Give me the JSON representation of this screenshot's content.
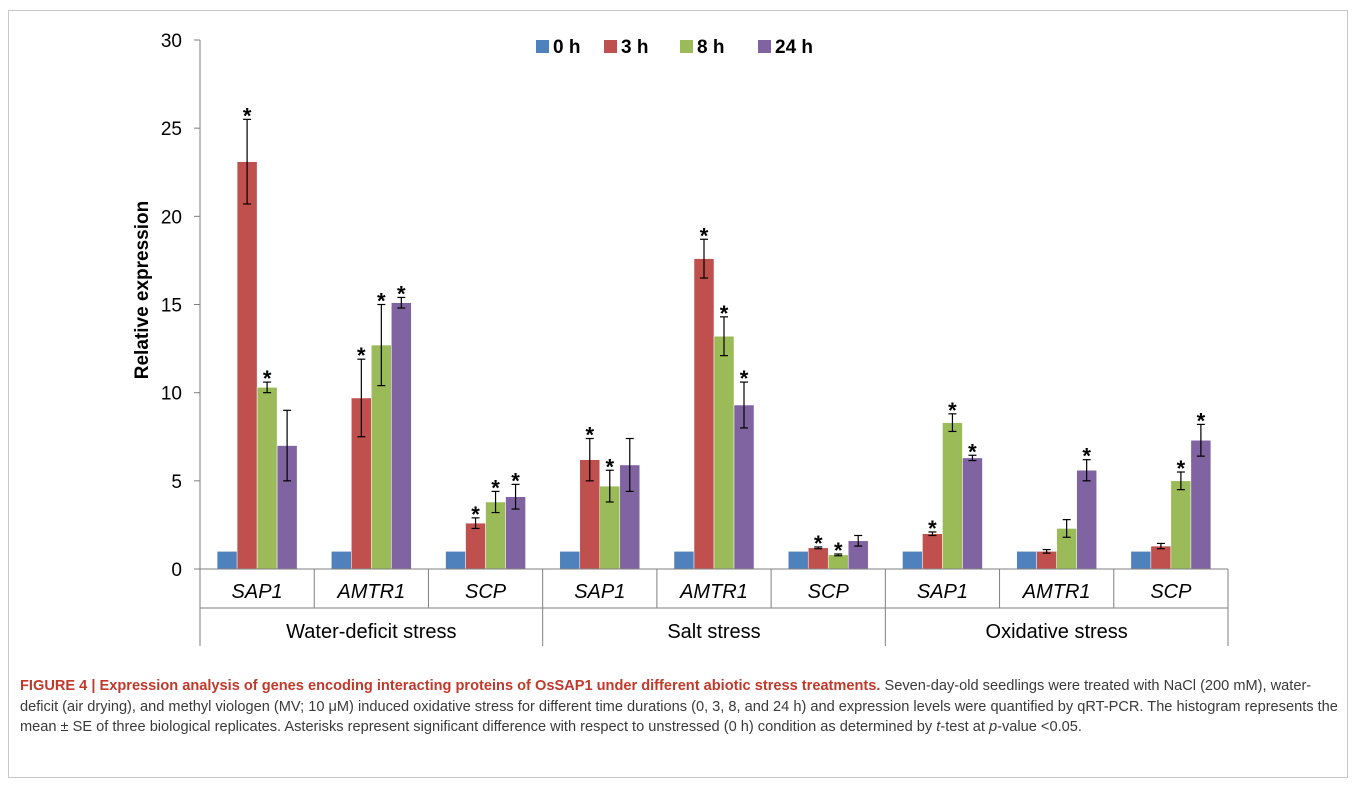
{
  "chart_data": {
    "type": "bar",
    "ylabel": "Relative expression",
    "ylim": [
      0,
      30
    ],
    "yticks": [
      0,
      5,
      10,
      15,
      20,
      25,
      30
    ],
    "grid": false,
    "legend_position": "top-center",
    "groups": [
      {
        "name": "Water-deficit stress",
        "categories": [
          "SAP1",
          "AMTR1",
          "SCP"
        ]
      },
      {
        "name": "Salt stress",
        "categories": [
          "SAP1",
          "AMTR1",
          "SCP"
        ]
      },
      {
        "name": "Oxidative stress",
        "categories": [
          "SAP1",
          "AMTR1",
          "SCP"
        ]
      }
    ],
    "series": [
      {
        "name": "0 h",
        "color": "#4F81BD",
        "values": [
          1,
          1,
          1,
          1,
          1,
          1,
          1,
          1,
          1
        ],
        "errors": [
          0,
          0,
          0,
          0,
          0,
          0,
          0,
          0,
          0
        ],
        "significant": [
          false,
          false,
          false,
          false,
          false,
          false,
          false,
          false,
          false
        ]
      },
      {
        "name": "3 h",
        "color": "#C0504D",
        "values": [
          23.1,
          9.7,
          2.6,
          6.2,
          17.6,
          1.2,
          2.0,
          1.0,
          1.3
        ],
        "errors": [
          2.4,
          2.2,
          0.3,
          1.2,
          1.1,
          0.05,
          0.1,
          0.1,
          0.15
        ],
        "significant": [
          true,
          true,
          true,
          true,
          true,
          true,
          true,
          false,
          false
        ]
      },
      {
        "name": "8 h",
        "color": "#9BBB59",
        "values": [
          10.3,
          12.7,
          3.8,
          4.7,
          13.2,
          0.8,
          8.3,
          2.3,
          5.0
        ],
        "errors": [
          0.3,
          2.3,
          0.6,
          0.9,
          1.1,
          0.05,
          0.5,
          0.5,
          0.5
        ],
        "significant": [
          true,
          true,
          true,
          true,
          true,
          true,
          true,
          false,
          true
        ]
      },
      {
        "name": "24 h",
        "color": "#8064A2",
        "values": [
          7.0,
          15.1,
          4.1,
          5.9,
          9.3,
          1.6,
          6.3,
          5.6,
          7.3
        ],
        "errors": [
          2.0,
          0.3,
          0.7,
          1.5,
          1.3,
          0.3,
          0.15,
          0.6,
          0.9
        ],
        "significant": [
          false,
          true,
          true,
          false,
          true,
          false,
          true,
          true,
          true
        ]
      }
    ],
    "significance_marker": "*"
  },
  "caption": {
    "label": "FIGURE 4 | Expression analysis of genes encoding interacting proteins of OsSAP1 under different abiotic stress treatments.",
    "text_1": " Seven-day-old seedlings were treated with NaCl (200 mM), water-deficit (air drying), and methyl viologen (MV; 10 μM) induced oxidative stress for different time durations (0, 3, 8, and 24 h) and expression levels were quantified by qRT-PCR. The histogram represents the mean ± SE of three biological replicates. Asterisks represent significant difference with respect to unstressed (0 h) condition as determined by ",
    "t_test_italic": "t",
    "text_2": "-test at ",
    "p_italic": "p",
    "text_3": "-value <0.05."
  }
}
